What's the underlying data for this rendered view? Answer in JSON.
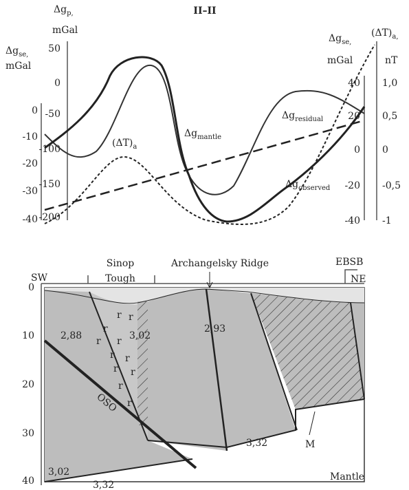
{
  "title": "II–II",
  "top_panel": {
    "left_outer_axis": {
      "symbol": "Δg",
      "sub": "se,",
      "unit": "mGal",
      "ticks": [
        "0",
        "-10",
        "-20",
        "-30",
        "-40"
      ]
    },
    "left_inner_axis": {
      "symbol": "Δg",
      "sub": "p,",
      "unit": "mGal",
      "ticks": [
        "50",
        "0",
        "-50",
        "-100",
        "-150",
        "-200"
      ]
    },
    "right_inner_axis": {
      "symbol": "Δg",
      "sub": "se,",
      "unit": "mGal",
      "ticks": [
        "40",
        "20",
        "0",
        "-20",
        "-40"
      ]
    },
    "right_outer_axis": {
      "symbol": "(ΔT)",
      "sub": "a,",
      "unit": "nT",
      "ticks": [
        "1,0",
        "0,5",
        "0",
        "-0,5",
        "-1"
      ]
    },
    "curve_labels": {
      "magnetic": {
        "symbol": "(ΔT)",
        "sub": "a"
      },
      "mantle": {
        "symbol": "Δg",
        "sub": "mantle"
      },
      "residual": {
        "symbol": "Δg",
        "sub": "residual"
      },
      "observed": {
        "symbol": "Δg",
        "sub": "observed"
      }
    }
  },
  "section": {
    "depth_ticks": [
      "0",
      "10",
      "20",
      "30",
      "40"
    ],
    "ends": {
      "left": "SW",
      "right": "NE",
      "right_top": "EBSB"
    },
    "features": {
      "trough": [
        "Sinop",
        "Tough"
      ],
      "ridge": "Archangelsky Ridge"
    },
    "densities": [
      "2,88",
      "3,02",
      "2,93",
      "3,32",
      "3,02",
      "3,32"
    ],
    "pattern_symbol": "r",
    "labels": {
      "fault": "OSO",
      "moho": "M",
      "mantle": "Mantle"
    }
  }
}
